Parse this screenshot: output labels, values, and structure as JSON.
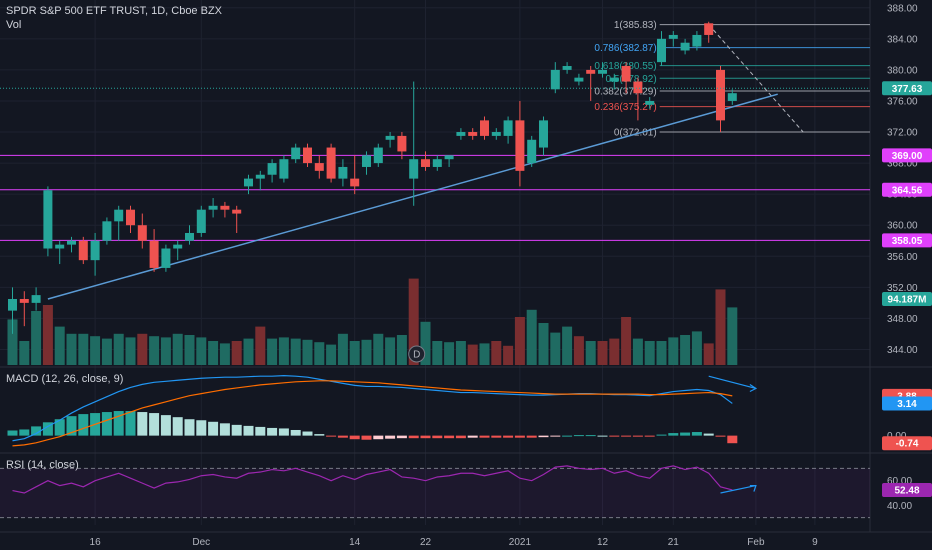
{
  "header": {
    "title": "SPDR S&P 500 ETF TRUST, 1D, Cboe BZX",
    "vol_label": "Vol"
  },
  "macd_label": "MACD (12, 26, close, 9)",
  "rsi_label": "RSI (14, close)",
  "colors": {
    "background": "#131722",
    "up": "#26a69a",
    "down": "#ef5350",
    "vol_up": "#1f6b62",
    "vol_down": "#7a2e30",
    "magenta": "#e040fb",
    "trend": "#5b9bd5",
    "macd": "#2196f3",
    "signal": "#ff6d00",
    "rsi": "#9c27b0",
    "grid": "#1e2230"
  },
  "chart_data": [
    {
      "type": "candlestick",
      "title": "SPDR S&P 500 ETF TRUST, 1D, Cboe BZX",
      "ylim": [
        342,
        389
      ],
      "y_ticks": [
        344.0,
        348.0,
        352.0,
        356.0,
        360.0,
        364.0,
        368.0,
        372.0,
        376.0,
        380.0,
        384.0,
        388.0
      ],
      "x_tick_labels": [
        "16",
        "Dec",
        "14",
        "22",
        "2021",
        "12",
        "21",
        "Feb",
        "9"
      ],
      "x_tick_index": [
        7,
        16,
        29,
        35,
        43,
        50,
        56,
        63,
        68
      ],
      "candles": [
        [
          349.0,
          352.0,
          346.0,
          350.5
        ],
        [
          350.5,
          351.5,
          347.0,
          350.0
        ],
        [
          350.0,
          352.0,
          349.0,
          351.0
        ],
        [
          357.0,
          365.0,
          356.0,
          364.5
        ],
        [
          357.0,
          358.0,
          355.0,
          357.5
        ],
        [
          357.5,
          358.5,
          356.5,
          358.0
        ],
        [
          358.0,
          358.5,
          355.0,
          355.5
        ],
        [
          355.5,
          359.0,
          353.5,
          358.0
        ],
        [
          358.0,
          361.0,
          357.5,
          360.5
        ],
        [
          360.5,
          362.5,
          358.0,
          362.0
        ],
        [
          362.0,
          362.5,
          359.0,
          360.0
        ],
        [
          360.0,
          361.5,
          357.0,
          358.0
        ],
        [
          358.0,
          359.5,
          354.0,
          354.5
        ],
        [
          354.5,
          357.5,
          354.0,
          357.0
        ],
        [
          357.0,
          358.0,
          355.5,
          357.5
        ],
        [
          358.0,
          360.0,
          357.5,
          359.0
        ],
        [
          359.0,
          362.5,
          358.5,
          362.0
        ],
        [
          362.0,
          363.5,
          361.0,
          362.5
        ],
        [
          362.5,
          363.0,
          361.0,
          362.0
        ],
        [
          362.0,
          362.5,
          359.0,
          361.5
        ],
        [
          365.0,
          366.5,
          364.0,
          366.0
        ],
        [
          366.0,
          367.0,
          364.5,
          366.5
        ],
        [
          366.5,
          368.5,
          365.5,
          368.0
        ],
        [
          366.0,
          369.0,
          365.5,
          368.5
        ],
        [
          368.5,
          370.5,
          368.0,
          370.0
        ],
        [
          370.0,
          370.5,
          367.5,
          368.0
        ],
        [
          368.0,
          369.0,
          366.0,
          367.0
        ],
        [
          370.0,
          370.5,
          365.5,
          366.0
        ],
        [
          366.0,
          368.5,
          365.0,
          367.5
        ],
        [
          366.0,
          369.0,
          364.0,
          365.0
        ],
        [
          367.5,
          369.5,
          366.5,
          369.0
        ],
        [
          368.0,
          370.5,
          367.5,
          370.0
        ],
        [
          371.0,
          372.0,
          370.0,
          371.5
        ],
        [
          371.5,
          372.0,
          368.5,
          369.5
        ],
        [
          366.0,
          378.5,
          362.5,
          368.5
        ],
        [
          368.5,
          369.5,
          367.0,
          367.5
        ],
        [
          367.5,
          369.0,
          367.0,
          368.5
        ],
        [
          368.5,
          369.0,
          367.5,
          369.0
        ],
        [
          371.5,
          372.5,
          371.0,
          372.0
        ],
        [
          372.0,
          372.5,
          371.0,
          371.5
        ],
        [
          373.5,
          374.0,
          371.0,
          371.5
        ],
        [
          371.5,
          372.5,
          371.0,
          372.0
        ],
        [
          371.5,
          374.0,
          370.5,
          373.5
        ],
        [
          373.5,
          376.0,
          365.0,
          367.0
        ],
        [
          368.0,
          371.5,
          367.5,
          371.0
        ],
        [
          370.0,
          374.0,
          369.0,
          373.5
        ],
        [
          377.5,
          381.0,
          377.0,
          380.0
        ],
        [
          380.0,
          381.0,
          379.5,
          380.5
        ],
        [
          378.5,
          379.5,
          378.0,
          379.0
        ],
        [
          380.0,
          380.5,
          376.0,
          379.5
        ],
        [
          379.5,
          381.0,
          379.0,
          380.0
        ],
        [
          378.5,
          379.5,
          377.5,
          379.0
        ],
        [
          380.5,
          381.0,
          377.0,
          378.5
        ],
        [
          378.5,
          379.0,
          373.5,
          377.0
        ],
        [
          375.5,
          376.5,
          375.0,
          376.0
        ],
        [
          381.0,
          385.0,
          380.5,
          384.0
        ],
        [
          384.0,
          385.0,
          383.0,
          384.5
        ],
        [
          382.5,
          384.0,
          382.0,
          383.5
        ],
        [
          383.0,
          385.0,
          382.5,
          384.5
        ],
        [
          386.0,
          386.2,
          383.5,
          384.5
        ],
        [
          380.0,
          380.5,
          372.0,
          373.5
        ],
        [
          376.0,
          377.5,
          375.5,
          377.0
        ]
      ],
      "volume": [
        [
          0.38,
          "up"
        ],
        [
          0.2,
          "up"
        ],
        [
          0.45,
          "up"
        ],
        [
          0.5,
          "down"
        ],
        [
          0.32,
          "up"
        ],
        [
          0.26,
          "up"
        ],
        [
          0.26,
          "up"
        ],
        [
          0.24,
          "up"
        ],
        [
          0.22,
          "up"
        ],
        [
          0.26,
          "up"
        ],
        [
          0.23,
          "up"
        ],
        [
          0.26,
          "down"
        ],
        [
          0.24,
          "up"
        ],
        [
          0.23,
          "up"
        ],
        [
          0.26,
          "up"
        ],
        [
          0.25,
          "up"
        ],
        [
          0.23,
          "up"
        ],
        [
          0.2,
          "up"
        ],
        [
          0.18,
          "up"
        ],
        [
          0.2,
          "down"
        ],
        [
          0.22,
          "up"
        ],
        [
          0.32,
          "down"
        ],
        [
          0.22,
          "up"
        ],
        [
          0.23,
          "up"
        ],
        [
          0.22,
          "up"
        ],
        [
          0.21,
          "up"
        ],
        [
          0.19,
          "up"
        ],
        [
          0.17,
          "up"
        ],
        [
          0.26,
          "up"
        ],
        [
          0.2,
          "up"
        ],
        [
          0.21,
          "up"
        ],
        [
          0.26,
          "up"
        ],
        [
          0.23,
          "up"
        ],
        [
          0.25,
          "up"
        ],
        [
          0.72,
          "down"
        ],
        [
          0.36,
          "up"
        ],
        [
          0.2,
          "up"
        ],
        [
          0.19,
          "up"
        ],
        [
          0.2,
          "up"
        ],
        [
          0.17,
          "down"
        ],
        [
          0.18,
          "up"
        ],
        [
          0.2,
          "down"
        ],
        [
          0.16,
          "down"
        ],
        [
          0.4,
          "down"
        ],
        [
          0.46,
          "up"
        ],
        [
          0.35,
          "up"
        ],
        [
          0.27,
          "up"
        ],
        [
          0.32,
          "up"
        ],
        [
          0.24,
          "down"
        ],
        [
          0.2,
          "up"
        ],
        [
          0.2,
          "down"
        ],
        [
          0.22,
          "down"
        ],
        [
          0.4,
          "down"
        ],
        [
          0.22,
          "up"
        ],
        [
          0.2,
          "up"
        ],
        [
          0.2,
          "up"
        ],
        [
          0.23,
          "up"
        ],
        [
          0.25,
          "up"
        ],
        [
          0.28,
          "up"
        ],
        [
          0.18,
          "down"
        ],
        [
          0.63,
          "down"
        ],
        [
          0.48,
          "up"
        ]
      ],
      "horizontal_levels": [
        {
          "value": 369.0,
          "label": "369.00",
          "color": "#e040fb"
        },
        {
          "value": 364.56,
          "label": "364.56",
          "color": "#e040fb"
        },
        {
          "value": 358.05,
          "label": "358.05",
          "color": "#e040fb"
        }
      ],
      "current_price": {
        "value": 377.63,
        "label": "377.63"
      },
      "volume_label": {
        "value": "94.187M"
      },
      "fib_levels": [
        {
          "ratio": "1",
          "price": 385.83,
          "label": "1(385.83)",
          "color": "#b2b5be"
        },
        {
          "ratio": "0.786",
          "price": 382.87,
          "label": "0.786(382.87)",
          "color": "#42a5f5"
        },
        {
          "ratio": "0.618",
          "price": 380.55,
          "label": "0.618(380.55)",
          "color": "#26a69a"
        },
        {
          "ratio": "0.5",
          "price": 378.92,
          "label": "0.5(378.92)",
          "color": "#26a69a"
        },
        {
          "ratio": "0.382",
          "price": 377.29,
          "label": "0.382(377.29)",
          "color": "#b2b5be"
        },
        {
          "ratio": "0.236",
          "price": 375.27,
          "label": "0.236(375.27)",
          "color": "#ef5350"
        },
        {
          "ratio": "0",
          "price": 372.01,
          "label": "0(372.01)",
          "color": "#b2b5be"
        }
      ],
      "trend_line": {
        "from": [
          3,
          350.5
        ],
        "to": [
          64,
          377.0
        ]
      },
      "event_marker": {
        "index": 34,
        "label": "D"
      }
    },
    {
      "type": "line",
      "title": "MACD (12, 26, close, 9)",
      "ylim": [
        -1.5,
        6.5
      ],
      "y_ticks": [
        0.0
      ],
      "y_tick_labels": [
        "0.00"
      ],
      "badges": [
        {
          "value": 3.88,
          "label": "3.88",
          "color": "#ef5350"
        },
        {
          "value": 3.14,
          "label": "3.14",
          "color": "#2196f3"
        },
        {
          "value": -0.74,
          "label": "-0.74",
          "color": "#ef5350"
        }
      ],
      "series": [
        {
          "name": "macd",
          "values": [
            -0.5,
            -0.3,
            0.2,
            0.9,
            1.5,
            2.2,
            2.8,
            3.3,
            3.8,
            4.3,
            4.7,
            5.0,
            5.2,
            5.3,
            5.4,
            5.5,
            5.6,
            5.65,
            5.7,
            5.7,
            5.75,
            5.8,
            5.8,
            5.85,
            5.8,
            5.7,
            5.5,
            5.3,
            5.1,
            4.9,
            4.8,
            4.8,
            4.75,
            4.7,
            4.6,
            4.5,
            4.4,
            4.3,
            4.2,
            4.2,
            4.15,
            4.1,
            4.05,
            4.0,
            3.95,
            3.95,
            4.0,
            4.05,
            4.1,
            4.1,
            4.05,
            4.0,
            4.0,
            3.95,
            3.9,
            4.1,
            4.3,
            4.4,
            4.5,
            4.4,
            4.0,
            3.14
          ]
        },
        {
          "name": "signal",
          "values": [
            -1.0,
            -0.9,
            -0.7,
            -0.4,
            -0.1,
            0.3,
            0.7,
            1.1,
            1.5,
            1.9,
            2.3,
            2.7,
            3.0,
            3.3,
            3.6,
            3.9,
            4.1,
            4.3,
            4.5,
            4.65,
            4.8,
            4.95,
            5.05,
            5.15,
            5.25,
            5.3,
            5.35,
            5.35,
            5.3,
            5.25,
            5.2,
            5.15,
            5.05,
            4.95,
            4.85,
            4.75,
            4.65,
            4.55,
            4.45,
            4.4,
            4.35,
            4.3,
            4.25,
            4.2,
            4.15,
            4.1,
            4.05,
            4.05,
            4.05,
            4.05,
            4.05,
            4.05,
            4.05,
            4.05,
            4.0,
            4.0,
            4.05,
            4.1,
            4.15,
            4.2,
            4.1,
            3.88
          ]
        },
        {
          "name": "histogram",
          "values": [
            0.5,
            0.6,
            0.9,
            1.3,
            1.6,
            1.9,
            2.1,
            2.2,
            2.3,
            2.4,
            2.4,
            2.3,
            2.2,
            2.0,
            1.8,
            1.6,
            1.5,
            1.35,
            1.2,
            1.05,
            0.95,
            0.85,
            0.75,
            0.7,
            0.55,
            0.4,
            0.15,
            -0.05,
            -0.2,
            -0.35,
            -0.4,
            -0.35,
            -0.3,
            -0.25,
            -0.25,
            -0.25,
            -0.25,
            -0.25,
            -0.25,
            -0.2,
            -0.2,
            -0.2,
            -0.2,
            -0.2,
            -0.2,
            -0.15,
            -0.05,
            0.0,
            0.05,
            0.05,
            0.0,
            -0.05,
            -0.05,
            -0.1,
            -0.1,
            0.1,
            0.25,
            0.3,
            0.35,
            0.2,
            -0.1,
            -0.74
          ]
        }
      ]
    },
    {
      "type": "line",
      "title": "RSI (14, close)",
      "ylim": [
        20,
        80
      ],
      "y_ticks": [
        40.0,
        60.0
      ],
      "y_tick_labels": [
        "40.00",
        "60.00"
      ],
      "band": [
        30,
        70
      ],
      "badges": [
        {
          "value": 52.48,
          "label": "52.48",
          "color": "#9c27b0"
        }
      ],
      "series": [
        {
          "name": "rsi",
          "values": [
            52,
            50,
            55,
            60,
            56,
            58,
            55,
            60,
            63,
            66,
            62,
            58,
            54,
            58,
            59,
            61,
            64,
            65,
            63,
            62,
            66,
            67,
            69,
            68,
            70,
            67,
            64,
            60,
            64,
            61,
            65,
            67,
            69,
            63,
            62,
            60,
            63,
            64,
            66,
            66,
            64,
            66,
            68,
            62,
            60,
            65,
            71,
            72,
            70,
            69,
            70,
            66,
            68,
            64,
            62,
            70,
            72,
            69,
            71,
            66,
            55,
            52.48
          ]
        }
      ]
    }
  ]
}
